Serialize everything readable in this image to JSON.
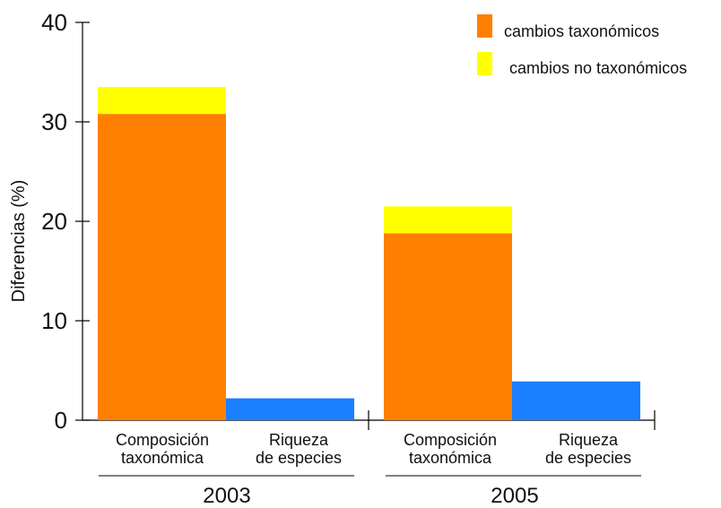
{
  "chart_data": {
    "type": "bar",
    "stacked": true,
    "ylabel": "Diferencias (%)",
    "ylim": [
      0,
      40
    ],
    "yticks": [
      0,
      10,
      20,
      30,
      40
    ],
    "groups": [
      "2003",
      "2005"
    ],
    "categories": [
      {
        "line1": "Composición",
        "line2": "taxonómica"
      },
      {
        "line1": "Riqueza",
        "line2": "de especies"
      }
    ],
    "series": [
      {
        "name": "cambios taxonómicos",
        "color": "#FF8000",
        "values": [
          30.8,
          18.8
        ]
      },
      {
        "name": "cambios no taxonómicos",
        "color": "#FFFF00",
        "values": [
          2.7,
          2.7
        ]
      },
      {
        "name": "",
        "color": "#1A80FF",
        "values": [
          2.2,
          3.9
        ]
      }
    ],
    "legend": {
      "position": "top-right",
      "entries": [
        {
          "label": "cambios taxonómicos",
          "color": "#FF8000"
        },
        {
          "label": "cambios no taxonómicos",
          "color": "#FFFF00"
        }
      ]
    },
    "grid": false
  }
}
